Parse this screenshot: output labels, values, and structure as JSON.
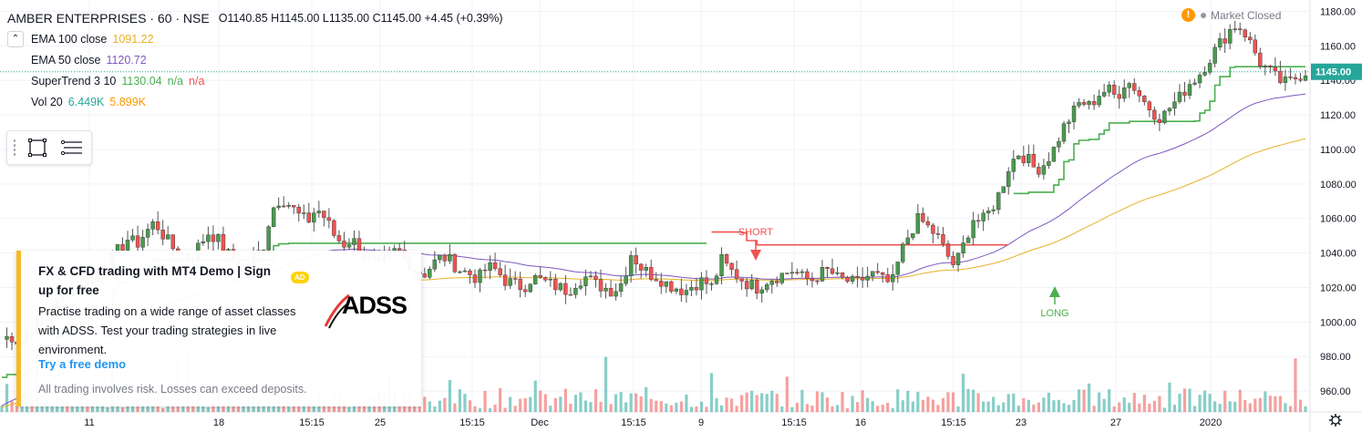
{
  "header": {
    "symbol": "AMBER ENTERPRISES · 60 · NSE",
    "ohlc": "O1140.85  H1145.00  L1135.00  C1145.00  +4.45 (+0.39%)"
  },
  "indicators": [
    {
      "label": "EMA 100 close",
      "value": "1091.22",
      "color": "#e8b125"
    },
    {
      "label": "EMA 50 close",
      "value": "1120.72",
      "color": "#7e57c2"
    },
    {
      "label": "SuperTrend 3 10",
      "value": "1130.04",
      "value2": "n/a",
      "value3": "n/a",
      "color": "#4caf50",
      "color3": "#ef5350"
    },
    {
      "label": "Vol 20",
      "value": "6.449K",
      "value2": "5.899K",
      "color": "#26a69a",
      "color2": "#ff9800"
    }
  ],
  "status": {
    "market": "Market Closed",
    "warn_icon": "!"
  },
  "toolbar": {
    "collapse_icon": "chevron-down-icon"
  },
  "ad": {
    "title": "FX & CFD trading with MT4 Demo | Sign up for free",
    "badge": "AD",
    "body": "Practise trading on a wide range of asset classes with ADSS. Test your trading strategies in live environment.",
    "cta": "Try a free demo",
    "disclaimer": "All trading involves risk. Losses can exceed deposits.",
    "logo_text": "ADSS"
  },
  "colors": {
    "up": "#26a69a",
    "up_body": "#4a9a4e",
    "down": "#ef5350",
    "grid": "#f0f3fa",
    "axis_text": "#131722"
  },
  "chart_data": {
    "type": "candlestick",
    "ylim": [
      950,
      1185
    ],
    "yticks": [
      960,
      980,
      1000,
      1020,
      1040,
      1060,
      1080,
      1100,
      1120,
      1140,
      1160,
      1180
    ],
    "last_price": "1145.00",
    "xticks": [
      "11",
      "18",
      "15:15",
      "25",
      "15:15",
      "Dec",
      "15:15",
      "9",
      "15:15",
      "16",
      "15:15",
      "23",
      "27",
      "2020"
    ],
    "annotations": [
      {
        "text": "SHORT",
        "color": "#ef5350"
      },
      {
        "text": "LONG",
        "color": "#4caf50"
      }
    ],
    "bars": 260,
    "candles_close": [
      990,
      992,
      988,
      995,
      1000,
      1005,
      1010,
      1018,
      1025,
      1028,
      1022,
      1030,
      1035,
      1042,
      1048,
      1045,
      1052,
      1058,
      1050,
      1043,
      1040,
      1036,
      1045,
      1052,
      1048,
      1040,
      1035,
      1032,
      1038,
      1042,
      1065,
      1072,
      1068,
      1062,
      1058,
      1066,
      1060,
      1050,
      1045,
      1048,
      1040,
      1035,
      1032,
      1038,
      1042,
      1036,
      1030,
      1028,
      1034,
      1038,
      1035,
      1030,
      1028,
      1025,
      1032,
      1030,
      1024,
      1022,
      1020,
      1026,
      1024,
      1022,
      1020,
      1018,
      1024,
      1026,
      1022,
      1020,
      1018,
      1023,
      1040,
      1032,
      1028,
      1026,
      1022,
      1020,
      1018,
      1022,
      1024,
      1020,
      1036,
      1030,
      1026,
      1022,
      1020,
      1024,
      1026,
      1028,
      1030,
      1026,
      1024,
      1028,
      1030,
      1025,
      1024,
      1022,
      1026,
      1028,
      1024,
      1022,
      1040,
      1052,
      1060,
      1055,
      1050,
      1040,
      1032,
      1045,
      1060,
      1058,
      1065,
      1075,
      1090,
      1098,
      1095,
      1088,
      1092,
      1100,
      1112,
      1120,
      1128,
      1125,
      1132,
      1135,
      1130,
      1140,
      1136,
      1128,
      1122,
      1118,
      1125,
      1130,
      1138,
      1142,
      1150,
      1158,
      1165,
      1172,
      1170,
      1160,
      1150,
      1145,
      1140,
      1138,
      1142,
      1145
    ]
  }
}
